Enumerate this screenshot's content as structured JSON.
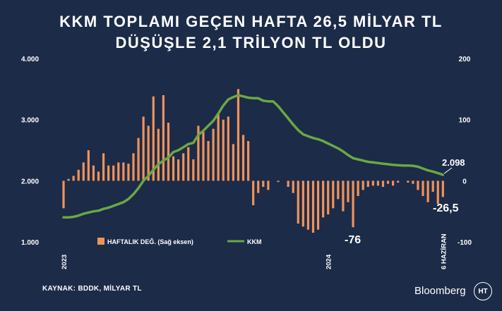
{
  "header": {
    "title_line1": "KKM TOPLAMI GEÇEN HAFTA 26,5 MİLYAR TL",
    "title_line2": "DÜŞÜŞLE 2,1 TRİLYON TL OLDU"
  },
  "footer": {
    "source": "KAYNAK: BDDK, MİLYAR TL",
    "brand": "Bloomberg",
    "logo_text": "HT"
  },
  "colors": {
    "background": "#1c2b48",
    "bars": "#f0935a",
    "line": "#6aa843",
    "text": "#ffffff"
  },
  "chart_data": {
    "type": "bar+line",
    "legend_position": "bottom-center",
    "grid": false,
    "left_axis": {
      "min": 1000,
      "max": 4000,
      "ticks": [
        "1.000",
        "2.000",
        "3.000",
        "4.000"
      ],
      "tick_values": [
        1000,
        2000,
        3000,
        4000
      ]
    },
    "right_axis": {
      "min": -100,
      "max": 200,
      "ticks": [
        "-100",
        "0",
        "100",
        "200"
      ],
      "tick_values": [
        -100,
        0,
        100,
        200
      ]
    },
    "x_labels": [
      {
        "label": "2023",
        "index": 0
      },
      {
        "label": "2024",
        "index": 53
      },
      {
        "label": "6 HAZİRAN",
        "index": 76
      }
    ],
    "series": [
      {
        "name": "HAFTALIK DEĞ. (Sağ eksen)",
        "type": "bar",
        "axis": "right",
        "values": [
          -45,
          3,
          8,
          18,
          30,
          50,
          25,
          15,
          45,
          25,
          25,
          30,
          30,
          28,
          45,
          70,
          105,
          90,
          138,
          85,
          140,
          95,
          40,
          35,
          45,
          55,
          35,
          90,
          80,
          65,
          85,
          110,
          100,
          105,
          60,
          150,
          75,
          65,
          -40,
          -20,
          -10,
          -15,
          0,
          -2,
          0,
          -10,
          -20,
          -70,
          -75,
          -80,
          -85,
          -80,
          -60,
          -55,
          -45,
          -30,
          -50,
          -35,
          -76,
          -25,
          -15,
          -10,
          -8,
          -8,
          -10,
          -5,
          -8,
          -3,
          0,
          -3,
          -5,
          -15,
          -25,
          -35,
          -18,
          -38,
          -26.5
        ]
      },
      {
        "name": "KKM",
        "type": "line",
        "axis": "left",
        "values": [
          1400,
          1400,
          1410,
          1430,
          1460,
          1480,
          1500,
          1510,
          1540,
          1560,
          1590,
          1620,
          1650,
          1700,
          1780,
          1880,
          2000,
          2080,
          2180,
          2270,
          2330,
          2380,
          2470,
          2500,
          2550,
          2600,
          2620,
          2750,
          2820,
          2900,
          2980,
          3100,
          3230,
          3330,
          3370,
          3400,
          3380,
          3360,
          3350,
          3350,
          3310,
          3300,
          3300,
          3220,
          3120,
          3020,
          2920,
          2830,
          2760,
          2730,
          2700,
          2680,
          2650,
          2610,
          2570,
          2530,
          2480,
          2420,
          2370,
          2350,
          2330,
          2310,
          2300,
          2290,
          2280,
          2270,
          2260,
          2255,
          2250,
          2248,
          2245,
          2230,
          2200,
          2170,
          2150,
          2125,
          2098
        ]
      }
    ],
    "annotations": [
      {
        "text": "-76",
        "series": 0,
        "index": 58
      },
      {
        "text": "2.098",
        "series": 1,
        "index": 76
      },
      {
        "text": "-26,5",
        "series": 0,
        "index": 76
      }
    ]
  }
}
